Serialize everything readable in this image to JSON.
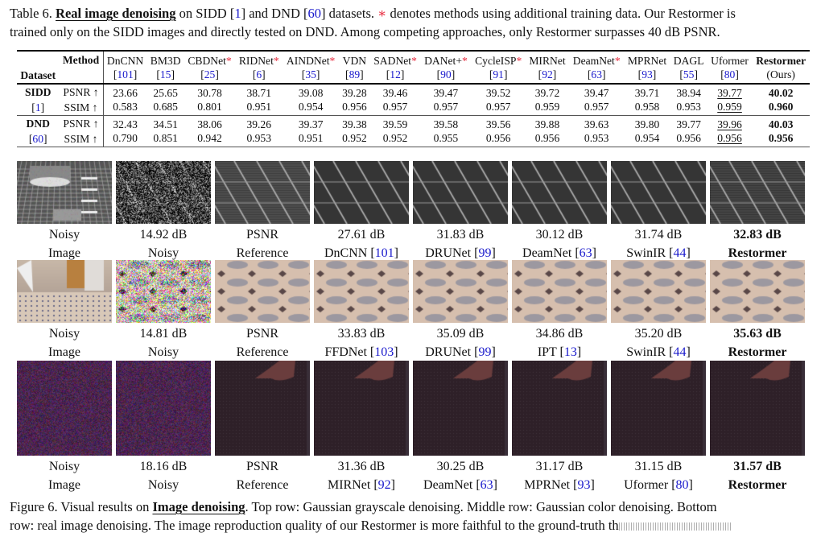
{
  "table_caption": {
    "prefix": "Table 6. ",
    "title": "Real image denoising",
    "t1": " on SIDD [",
    "r1": "1",
    "t2": "] and DND [",
    "r2": "60",
    "t3": "] datasets. ",
    "star": "∗",
    "t4": " denotes methods using additional training data. Our Restormer is",
    "line2": "trained only on the SIDD images and directly tested on DND. Among competing approaches, only Restormer surpasses 40 dB PSNR."
  },
  "table": {
    "method_header": "Method",
    "dataset_header": "Dataset",
    "methods": [
      {
        "name": "DnCNN",
        "ref": "101",
        "star": false
      },
      {
        "name": "BM3D",
        "ref": "15",
        "star": false
      },
      {
        "name": "CBDNet",
        "ref": "25",
        "star": true
      },
      {
        "name": "RIDNet",
        "ref": "6",
        "star": true
      },
      {
        "name": "AINDNet",
        "ref": "35",
        "star": true
      },
      {
        "name": "VDN",
        "ref": "89",
        "star": false
      },
      {
        "name": "SADNet",
        "ref": "12",
        "star": true
      },
      {
        "name": "DANet+",
        "ref": "90",
        "star": true
      },
      {
        "name": "CycleISP",
        "ref": "91",
        "star": true
      },
      {
        "name": "MIRNet",
        "ref": "92",
        "star": false
      },
      {
        "name": "DeamNet",
        "ref": "63",
        "star": true
      },
      {
        "name": "MPRNet",
        "ref": "93",
        "star": false
      },
      {
        "name": "DAGL",
        "ref": "55",
        "star": false
      },
      {
        "name": "Uformer",
        "ref": "80",
        "star": false
      },
      {
        "name": "Restormer",
        "ref": "(Ours)",
        "star": false,
        "ours": true
      }
    ],
    "star_glyph": "*",
    "groups": [
      {
        "dataset": "SIDD",
        "ref": "1",
        "rows": [
          {
            "metric": "PSNR ↑",
            "values": [
              "23.66",
              "25.65",
              "30.78",
              "38.71",
              "39.08",
              "39.28",
              "39.46",
              "39.47",
              "39.52",
              "39.72",
              "39.47",
              "39.71",
              "38.94",
              "39.77",
              "40.02"
            ]
          },
          {
            "metric": "SSIM ↑",
            "values": [
              "0.583",
              "0.685",
              "0.801",
              "0.951",
              "0.954",
              "0.956",
              "0.957",
              "0.957",
              "0.957",
              "0.959",
              "0.957",
              "0.958",
              "0.953",
              "0.959",
              "0.960"
            ]
          }
        ]
      },
      {
        "dataset": "DND",
        "ref": "60",
        "rows": [
          {
            "metric": "PSNR ↑",
            "values": [
              "32.43",
              "34.51",
              "38.06",
              "39.26",
              "39.37",
              "39.38",
              "39.59",
              "39.58",
              "39.56",
              "39.88",
              "39.63",
              "39.80",
              "39.77",
              "39.96",
              "40.03"
            ]
          },
          {
            "metric": "SSIM ↑",
            "values": [
              "0.790",
              "0.851",
              "0.942",
              "0.953",
              "0.951",
              "0.952",
              "0.952",
              "0.955",
              "0.956",
              "0.956",
              "0.953",
              "0.954",
              "0.956",
              "0.956",
              "0.956"
            ]
          }
        ]
      }
    ]
  },
  "figure_rows": [
    {
      "type": "gray",
      "cells": [
        {
          "line1": "Noisy",
          "line2": "Image",
          "ref": "",
          "bold": false
        },
        {
          "line1": "14.92 dB",
          "line2": "Noisy",
          "ref": "",
          "bold": false
        },
        {
          "line1": "PSNR",
          "line2": "Reference",
          "ref": "",
          "bold": false
        },
        {
          "line1": "27.61 dB",
          "line2": "DnCNN",
          "ref": "101",
          "bold": false
        },
        {
          "line1": "31.83 dB",
          "line2": "DRUNet",
          "ref": "99",
          "bold": false
        },
        {
          "line1": "30.12 dB",
          "line2": "DeamNet",
          "ref": "63",
          "bold": false
        },
        {
          "line1": "31.74 dB",
          "line2": "SwinIR",
          "ref": "44",
          "bold": false
        },
        {
          "line1": "32.83 dB",
          "line2": "Restormer",
          "ref": "",
          "bold": true
        }
      ]
    },
    {
      "type": "color",
      "cells": [
        {
          "line1": "Noisy",
          "line2": "Image",
          "ref": "",
          "bold": false
        },
        {
          "line1": "14.81 dB",
          "line2": "Noisy",
          "ref": "",
          "bold": false
        },
        {
          "line1": "PSNR",
          "line2": "Reference",
          "ref": "",
          "bold": false
        },
        {
          "line1": "33.83 dB",
          "line2": "FFDNet",
          "ref": "103",
          "bold": false
        },
        {
          "line1": "35.09 dB",
          "line2": "DRUNet",
          "ref": "99",
          "bold": false
        },
        {
          "line1": "34.86 dB",
          "line2": "IPT",
          "ref": "13",
          "bold": false
        },
        {
          "line1": "35.20 dB",
          "line2": "SwinIR",
          "ref": "44",
          "bold": false
        },
        {
          "line1": "35.63 dB",
          "line2": "Restormer",
          "ref": "",
          "bold": true
        }
      ]
    },
    {
      "type": "real",
      "cells": [
        {
          "line1": "Noisy",
          "line2": "Image",
          "ref": "",
          "bold": false
        },
        {
          "line1": "18.16 dB",
          "line2": "Noisy",
          "ref": "",
          "bold": false
        },
        {
          "line1": "PSNR",
          "line2": "Reference",
          "ref": "",
          "bold": false
        },
        {
          "line1": "31.36 dB",
          "line2": "MIRNet",
          "ref": "92",
          "bold": false
        },
        {
          "line1": "30.25 dB",
          "line2": "DeamNet",
          "ref": "63",
          "bold": false
        },
        {
          "line1": "31.17 dB",
          "line2": "MPRNet",
          "ref": "93",
          "bold": false
        },
        {
          "line1": "31.15 dB",
          "line2": "Uformer",
          "ref": "80",
          "bold": false
        },
        {
          "line1": "31.57 dB",
          "line2": "Restormer",
          "ref": "",
          "bold": true
        }
      ]
    }
  ],
  "figure_caption": {
    "prefix": "Figure 6.  Visual results on ",
    "title": "Image denoising",
    "rest": ".  Top row: Gaussian grayscale denoising.  Middle row: Gaussian color denoising.  Bottom",
    "line2": "row: real image denoising. The image reproduction quality of our Restormer is more faithful to the ground-truth th"
  }
}
